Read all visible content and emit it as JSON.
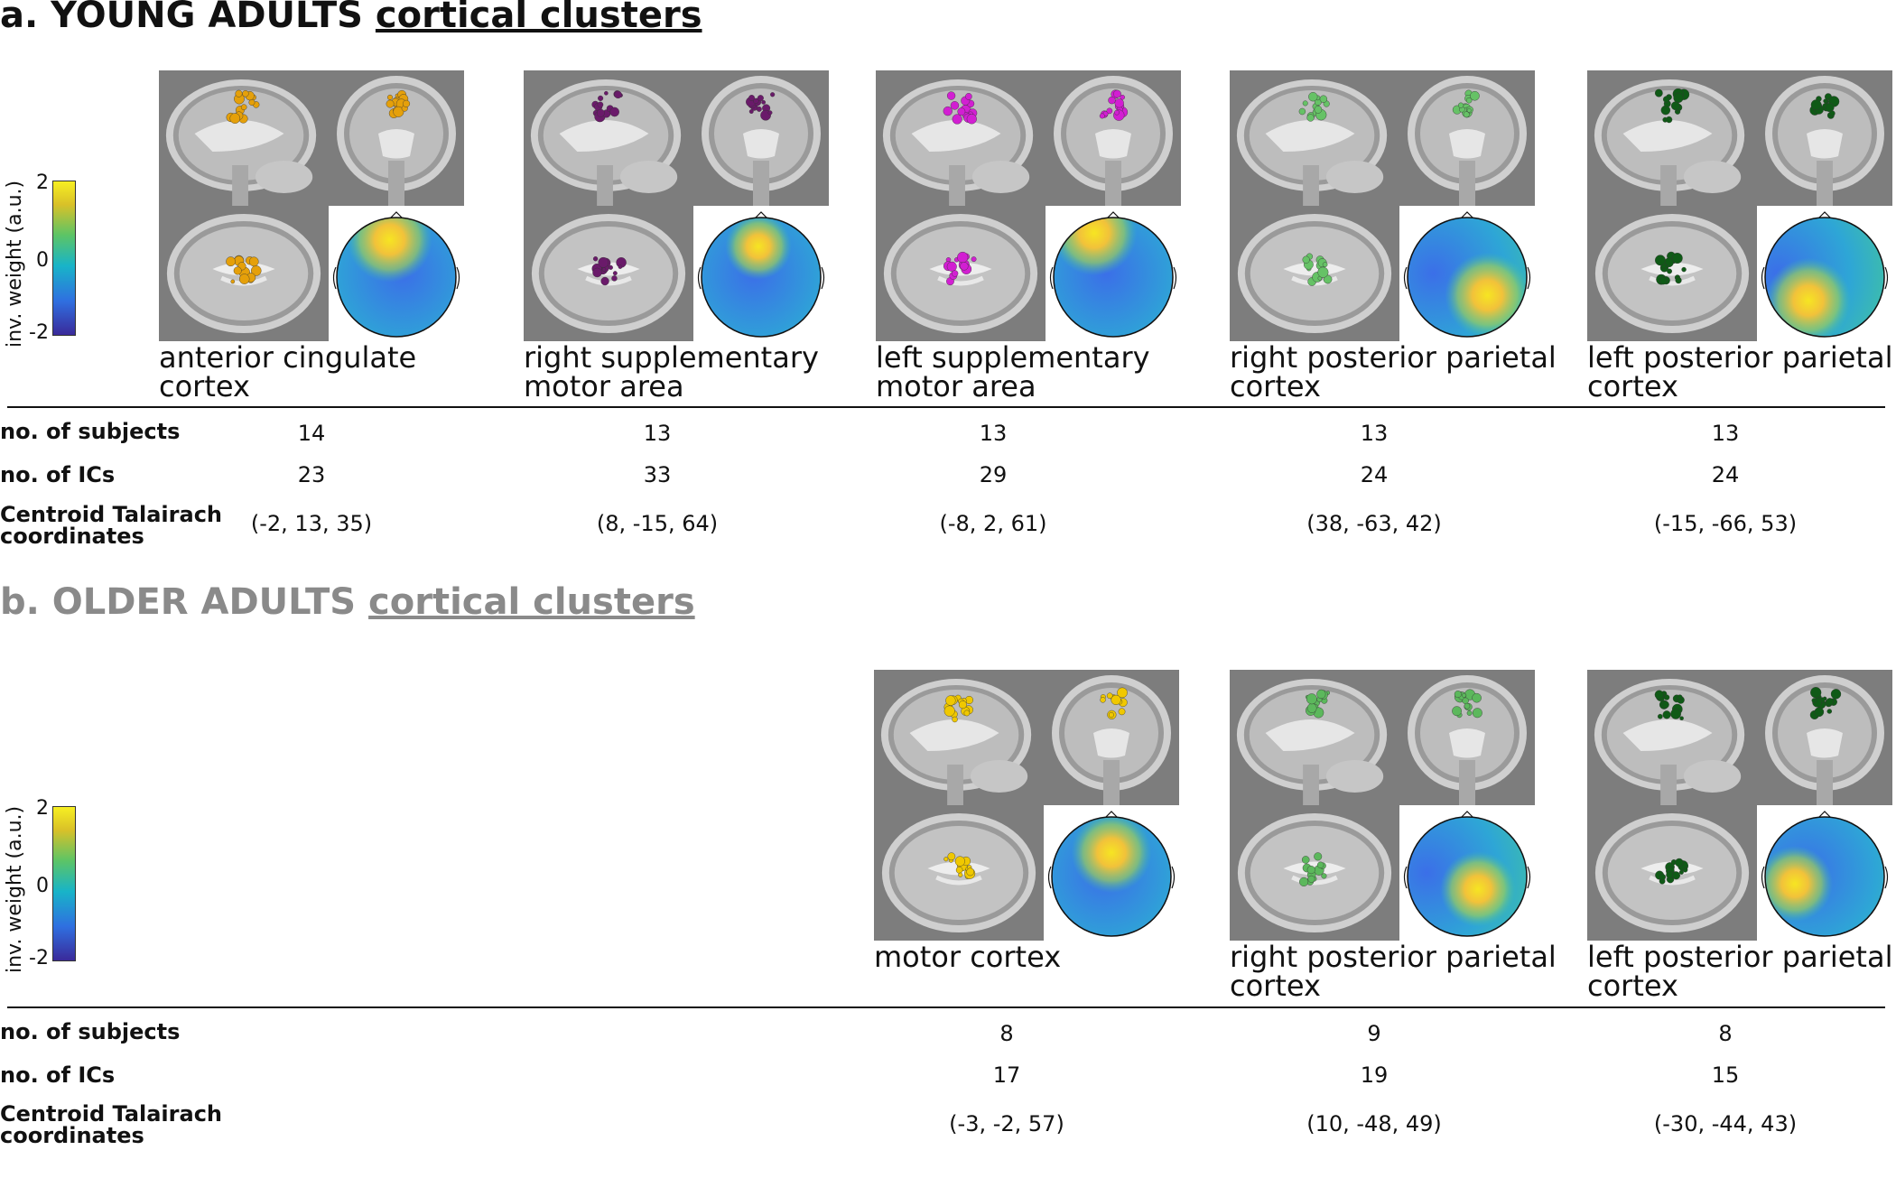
{
  "sections": [
    {
      "id": "a",
      "title_prefix": "a. YOUNG ADULTS",
      "title_link": "cortical clusters",
      "colorbar": {
        "label": "inv. weight (a.u.)",
        "max": "2",
        "mid": "0",
        "min": "-2"
      },
      "clusters": [
        {
          "name_line1": "anterior cingulate",
          "name_line2": "cortex",
          "color": "#e5a00a"
        },
        {
          "name_line1": "right supplementary",
          "name_line2": "motor area",
          "color": "#6a1a6a"
        },
        {
          "name_line1": "left supplementary",
          "name_line2": "motor area",
          "color": "#d21fd2"
        },
        {
          "name_line1": "right posterior parietal",
          "name_line2": "cortex",
          "color": "#66c266"
        },
        {
          "name_line1": "left posterior parietal",
          "name_line2": "cortex",
          "color": "#0f5a16"
        }
      ],
      "rows": {
        "subjects_label": "no. of subjects",
        "ics_label": "no. of ICs",
        "coords_label_1": "Centroid Talairach",
        "coords_label_2": "coordinates",
        "subjects": [
          "14",
          "13",
          "13",
          "13",
          "13"
        ],
        "ics": [
          "23",
          "33",
          "29",
          "24",
          "24"
        ],
        "coords": [
          "(-2, 13, 35)",
          "(8, -15, 64)",
          "(-8, 2, 61)",
          "(38, -63, 42)",
          "(-15, -66, 53)"
        ]
      }
    },
    {
      "id": "b",
      "title_prefix": "b. OLDER ADULTS",
      "title_link": "cortical clusters",
      "colorbar": {
        "label": "inv. weight (a.u.)",
        "max": "2",
        "mid": "0",
        "min": "-2"
      },
      "clusters": [
        {
          "name_line1": "motor cortex",
          "name_line2": "",
          "color": "#f0c800"
        },
        {
          "name_line1": "right posterior parietal",
          "name_line2": "cortex",
          "color": "#5cb85c"
        },
        {
          "name_line1": "left posterior parietal",
          "name_line2": "cortex",
          "color": "#0f5a16"
        }
      ],
      "rows": {
        "subjects_label": "no. of subjects",
        "ics_label": "no. of ICs",
        "coords_label_1": "Centroid Talairach",
        "coords_label_2": "coordinates",
        "subjects": [
          "8",
          "9",
          "8"
        ],
        "ics": [
          "17",
          "19",
          "15"
        ],
        "coords": [
          "(-3, -2, 57)",
          "(10, -48, 49)",
          "(-30, -44, 43)"
        ]
      }
    }
  ]
}
